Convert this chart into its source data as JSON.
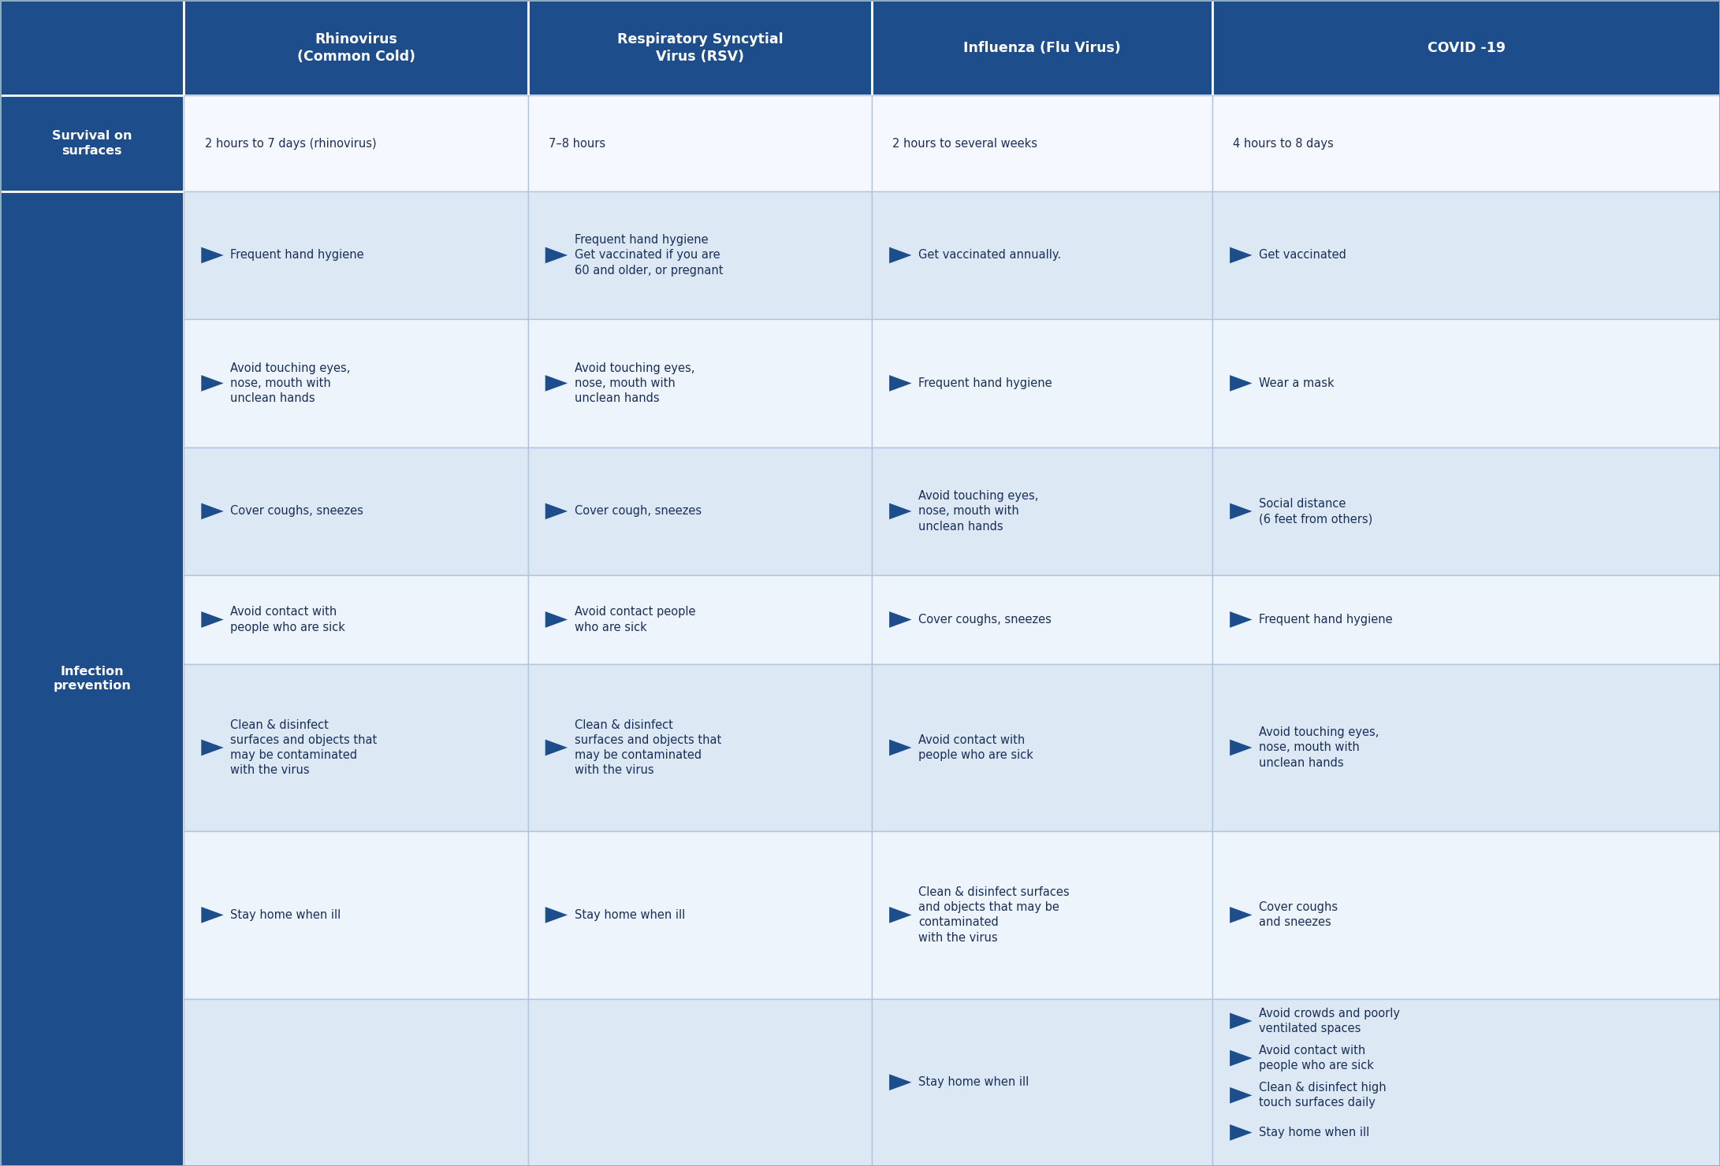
{
  "header_bg": "#1e4d8c",
  "header_text_color": "#ffffff",
  "row_label_bg": "#1e4d8c",
  "row_label_text_color": "#ffffff",
  "cell_bg_alt1": "#dce9f5",
  "cell_bg_alt2": "#eef4fb",
  "cell_bg_survival": "#f5f9ff",
  "border_color": "#b0c4de",
  "text_color": "#1a2e5a",
  "bullet_color": "#1e4d8c",
  "fig_bg": "#ffffff",
  "col_headers": [
    "Rhinovirus\n(Common Cold)",
    "Respiratory Syncytial\nVirus (RSV)",
    "Influenza (Flu Virus)",
    "COVID -19"
  ],
  "row_label_survival": "Survival on\nsurfaces",
  "row_label_prevention": "Infection\nprevention",
  "survival_row": [
    "2 hours to 7 days (rhinovirus)",
    "7–8 hours",
    "2 hours to several weeks",
    "4 hours to 8 days"
  ],
  "prevention_rows": [
    {
      "rhinovirus": "Frequent hand hygiene",
      "rsv": "Frequent hand hygiene\nGet vaccinated if you are\n60 and older, or pregnant",
      "influenza": "Get vaccinated annually.",
      "covid": "Get vaccinated"
    },
    {
      "rhinovirus": "Avoid touching eyes,\nnose, mouth with\nunclean hands",
      "rsv": "Avoid touching eyes,\nnose, mouth with\nunclean hands",
      "influenza": "Frequent hand hygiene",
      "covid": "Wear a mask"
    },
    {
      "rhinovirus": "Cover coughs, sneezes",
      "rsv": "Cover cough, sneezes",
      "influenza": "Avoid touching eyes,\nnose, mouth with\nunclean hands",
      "covid": "Social distance\n(6 feet from others)"
    },
    {
      "rhinovirus": "Avoid contact with\npeople who are sick",
      "rsv": "Avoid contact people\nwho are sick",
      "influenza": "Cover coughs, sneezes",
      "covid": "Frequent hand hygiene"
    },
    {
      "rhinovirus": "Clean & disinfect\nsurfaces and objects that\nmay be contaminated\nwith the virus",
      "rsv": "Clean & disinfect\nsurfaces and objects that\nmay be contaminated\nwith the virus",
      "influenza": "Avoid contact with\npeople who are sick",
      "covid": "Avoid touching eyes,\nnose, mouth with\nunclean hands"
    },
    {
      "rhinovirus": "Stay home when ill",
      "rsv": "Stay home when ill",
      "influenza": "Clean & disinfect surfaces\nand objects that may be\ncontaminated\nwith the virus",
      "covid": "Cover coughs\nand sneezes"
    },
    {
      "rhinovirus": "",
      "rsv": "",
      "influenza": "Stay home when ill",
      "covid": "Avoid crowds and poorly\nventilated spaces\nAvoid contact with\npeople who are sick\nClean & disinfect high\ntouch surfaces daily\nStay home when ill"
    }
  ],
  "covid_last_bullets": [
    "Avoid crowds and poorly\nventilated spaces",
    "Avoid contact with\npeople who are sick",
    "Clean & disinfect high\ntouch surfaces daily",
    "Stay home when ill"
  ]
}
